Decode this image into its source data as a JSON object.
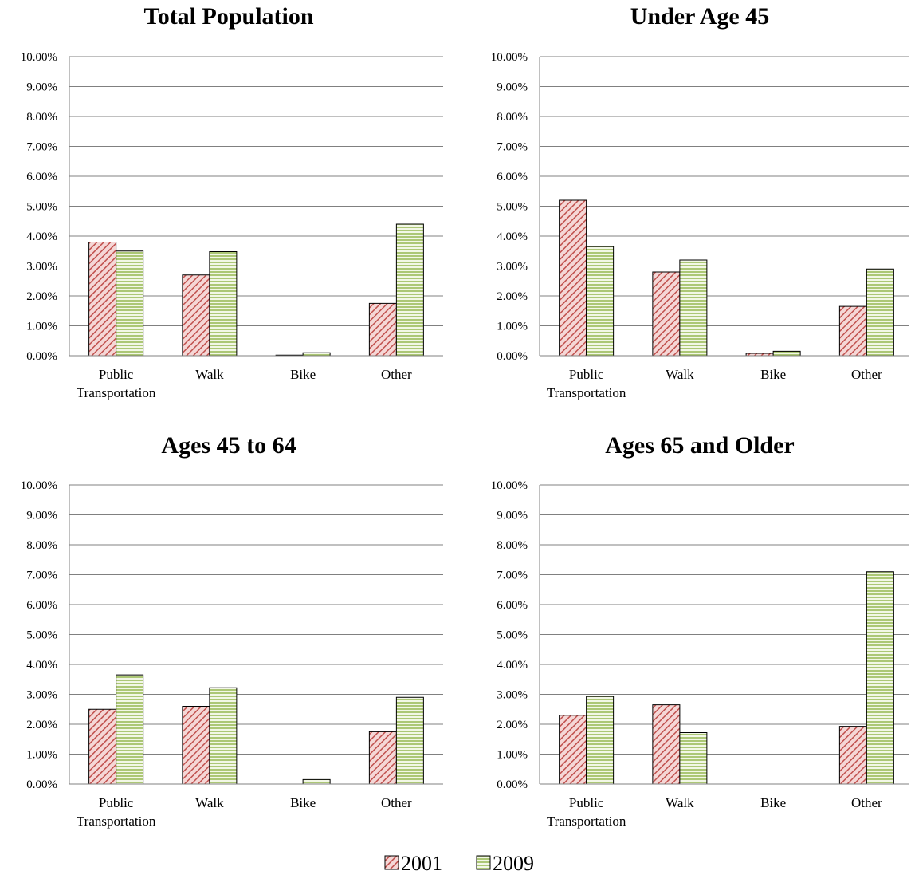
{
  "colors": {
    "series_2001": "#c0504d",
    "series_2001_bg": "#f5d7d6",
    "series_2009": "#9bbb59",
    "series_2009_bg": "#f2f7e6",
    "grid": "#808080",
    "bar_outline": "#000000"
  },
  "legend": {
    "items": [
      {
        "label": "2001",
        "series": "2001"
      },
      {
        "label": "2009",
        "series": "2009"
      }
    ]
  },
  "chart_data": [
    {
      "type": "bar",
      "title": "Total Population",
      "categories": [
        "Public Transportation",
        "Walk",
        "Bike",
        "Other"
      ],
      "category_lines": [
        [
          "Public",
          "Transportation"
        ],
        [
          "Walk"
        ],
        [
          "Bike"
        ],
        [
          "Other"
        ]
      ],
      "series": [
        {
          "name": "2001",
          "values": [
            3.8,
            2.7,
            0.02,
            1.75
          ]
        },
        {
          "name": "2009",
          "values": [
            3.5,
            3.48,
            0.1,
            4.4
          ]
        }
      ],
      "yticks": [
        "0.00%",
        "1.00%",
        "2.00%",
        "3.00%",
        "4.00%",
        "5.00%",
        "6.00%",
        "7.00%",
        "8.00%",
        "9.00%",
        "10.00%"
      ],
      "ylim": [
        0,
        10
      ],
      "grid": true,
      "legend": "bottom"
    },
    {
      "type": "bar",
      "title": "Under Age 45",
      "categories": [
        "Public Transportation",
        "Walk",
        "Bike",
        "Other"
      ],
      "category_lines": [
        [
          "Public",
          "Transportation"
        ],
        [
          "Walk"
        ],
        [
          "Bike"
        ],
        [
          "Other"
        ]
      ],
      "series": [
        {
          "name": "2001",
          "values": [
            5.2,
            2.8,
            0.08,
            1.65
          ]
        },
        {
          "name": "2009",
          "values": [
            3.65,
            3.2,
            0.15,
            2.9
          ]
        }
      ],
      "yticks": [
        "0.00%",
        "1.00%",
        "2.00%",
        "3.00%",
        "4.00%",
        "5.00%",
        "6.00%",
        "7.00%",
        "8.00%",
        "9.00%",
        "10.00%"
      ],
      "ylim": [
        0,
        10
      ],
      "grid": true,
      "legend": "bottom"
    },
    {
      "type": "bar",
      "title": "Ages 45 to 64",
      "categories": [
        "Public Transportation",
        "Walk",
        "Bike",
        "Other"
      ],
      "category_lines": [
        [
          "Public",
          "Transportation"
        ],
        [
          "Walk"
        ],
        [
          "Bike"
        ],
        [
          "Other"
        ]
      ],
      "series": [
        {
          "name": "2001",
          "values": [
            2.5,
            2.6,
            0.0,
            1.75
          ]
        },
        {
          "name": "2009",
          "values": [
            3.65,
            3.22,
            0.15,
            2.9
          ]
        }
      ],
      "yticks": [
        "0.00%",
        "1.00%",
        "2.00%",
        "3.00%",
        "4.00%",
        "5.00%",
        "6.00%",
        "7.00%",
        "8.00%",
        "9.00%",
        "10.00%"
      ],
      "ylim": [
        0,
        10
      ],
      "grid": true,
      "legend": "bottom"
    },
    {
      "type": "bar",
      "title": "Ages 65 and Older",
      "categories": [
        "Public Transportation",
        "Walk",
        "Bike",
        "Other"
      ],
      "category_lines": [
        [
          "Public",
          "Transportation"
        ],
        [
          "Walk"
        ],
        [
          "Bike"
        ],
        [
          "Other"
        ]
      ],
      "series": [
        {
          "name": "2001",
          "values": [
            2.3,
            2.65,
            0.0,
            1.93
          ]
        },
        {
          "name": "2009",
          "values": [
            2.93,
            1.72,
            0.0,
            7.1
          ]
        }
      ],
      "yticks": [
        "0.00%",
        "1.00%",
        "2.00%",
        "3.00%",
        "4.00%",
        "5.00%",
        "6.00%",
        "7.00%",
        "8.00%",
        "9.00%",
        "10.00%"
      ],
      "ylim": [
        0,
        10
      ],
      "grid": true,
      "legend": "bottom"
    }
  ]
}
